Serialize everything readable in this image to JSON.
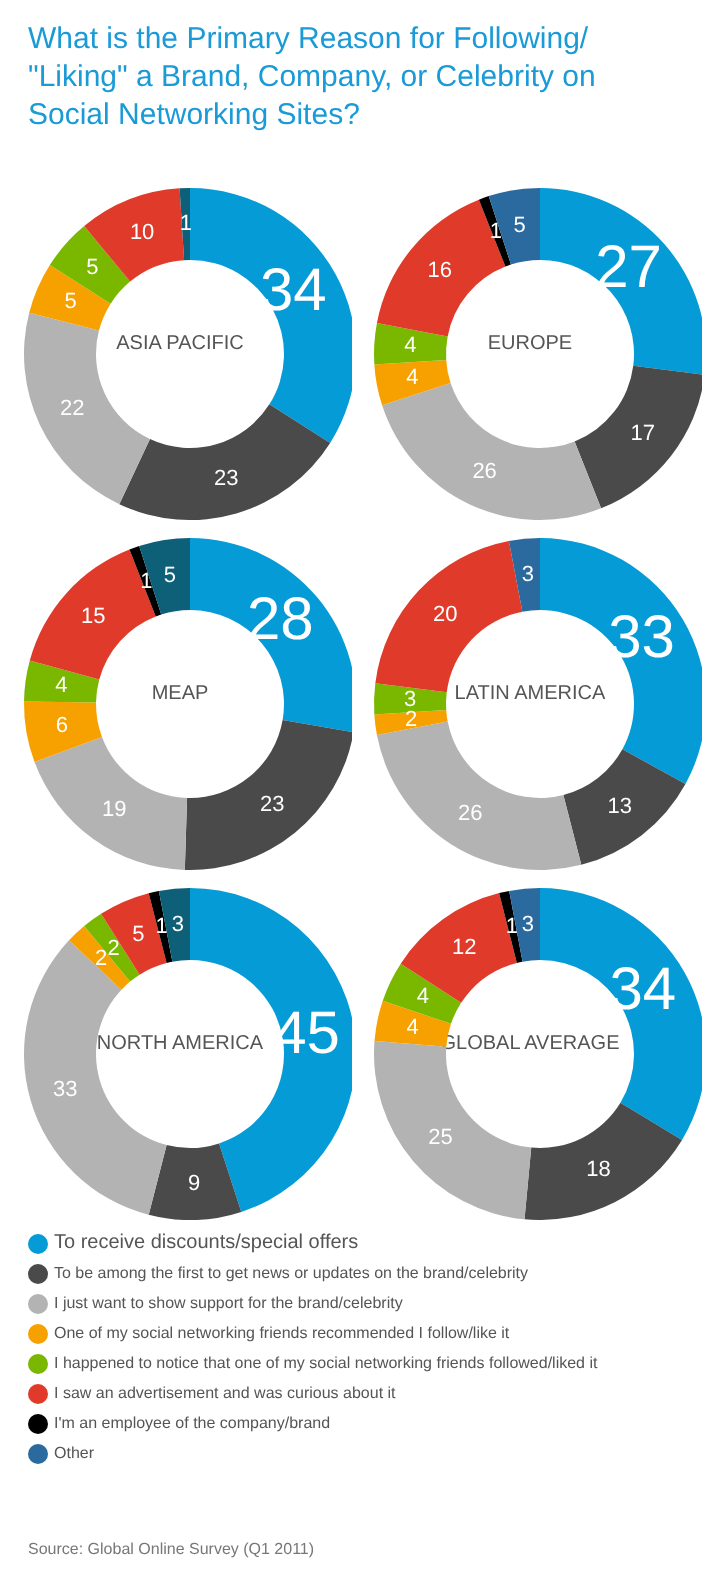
{
  "chart_data": [
    {
      "type": "other",
      "title": "What is the Primary Reason for Following/ \"Liking\" a Brand, Company, or Celebrity on Social Networking Sites?"
    },
    {
      "type": "donut",
      "title": "ASIA PACIFIC",
      "values": [
        34,
        23,
        22,
        5,
        5,
        10,
        0,
        1
      ],
      "value_labels": [
        "34",
        "23",
        "22",
        "5",
        "5",
        "10",
        null,
        "1"
      ],
      "colors": [
        "#049bd6",
        "#4a4a4a",
        "#b3b3b3",
        "#f7a100",
        "#7ab800",
        "#e03a2a",
        "#000000",
        "#0e5f78"
      ],
      "legend": false
    },
    {
      "type": "donut",
      "title": "EUROPE",
      "values": [
        27,
        17,
        26,
        4,
        4,
        16,
        1,
        5
      ],
      "value_labels": [
        "27",
        "17",
        "26",
        "4",
        "4",
        "16",
        "1",
        "5"
      ],
      "colors": [
        "#049bd6",
        "#4a4a4a",
        "#b3b3b3",
        "#f7a100",
        "#7ab800",
        "#e03a2a",
        "#000000",
        "#2a6a9e"
      ],
      "legend": false
    },
    {
      "type": "donut",
      "title": "MEAP",
      "values": [
        28,
        23,
        19,
        6,
        4,
        15,
        1,
        5
      ],
      "value_labels": [
        "28",
        "23",
        "19",
        "6",
        "4",
        "15",
        "1",
        "5"
      ],
      "colors": [
        "#049bd6",
        "#4a4a4a",
        "#b3b3b3",
        "#f7a100",
        "#7ab800",
        "#e03a2a",
        "#000000",
        "#0e5f78"
      ],
      "legend": false
    },
    {
      "type": "donut",
      "title": "LATIN AMERICA",
      "values": [
        33,
        13,
        26,
        2,
        3,
        20,
        0,
        3
      ],
      "value_labels": [
        "33",
        "13",
        "26",
        "2",
        "3",
        "20",
        null,
        "3"
      ],
      "colors": [
        "#049bd6",
        "#4a4a4a",
        "#b3b3b3",
        "#f7a100",
        "#7ab800",
        "#e03a2a",
        "#000000",
        "#2a6a9e"
      ],
      "legend": false
    },
    {
      "type": "donut",
      "title": "NORTH AMERICA",
      "values": [
        45,
        9,
        33,
        2,
        2,
        5,
        1,
        3
      ],
      "value_labels": [
        "45",
        "9",
        "33",
        "2",
        "2",
        "5",
        "1",
        "3"
      ],
      "colors": [
        "#049bd6",
        "#4a4a4a",
        "#b3b3b3",
        "#f7a100",
        "#7ab800",
        "#e03a2a",
        "#000000",
        "#0e5f78"
      ],
      "legend": false
    },
    {
      "type": "donut",
      "title": "GLOBAL AVERAGE",
      "categories": [
        "To receive discounts/special offers",
        "To be among the first to get news or updates on the brand/celebrity",
        "I just want to show support for the brand/celebrity",
        "One of my social networking friends recommended I follow/like it",
        "I happened to notice that one of my social networking friends followed/liked it",
        "I saw an advertisement and was curious about it",
        "I'm an employee of the company/brand",
        "Other"
      ],
      "values": [
        34,
        18,
        25,
        4,
        4,
        12,
        1,
        3
      ],
      "value_labels": [
        "34",
        "18",
        "25",
        "4",
        "4",
        "12",
        "1",
        "3"
      ],
      "colors": [
        "#049bd6",
        "#4a4a4a",
        "#b3b3b3",
        "#f7a100",
        "#7ab800",
        "#e03a2a",
        "#000000",
        "#2a6a9e"
      ],
      "legend": "bottom",
      "annotations": [
        "Source: Global Online Survey (Q1 2011)"
      ]
    }
  ]
}
